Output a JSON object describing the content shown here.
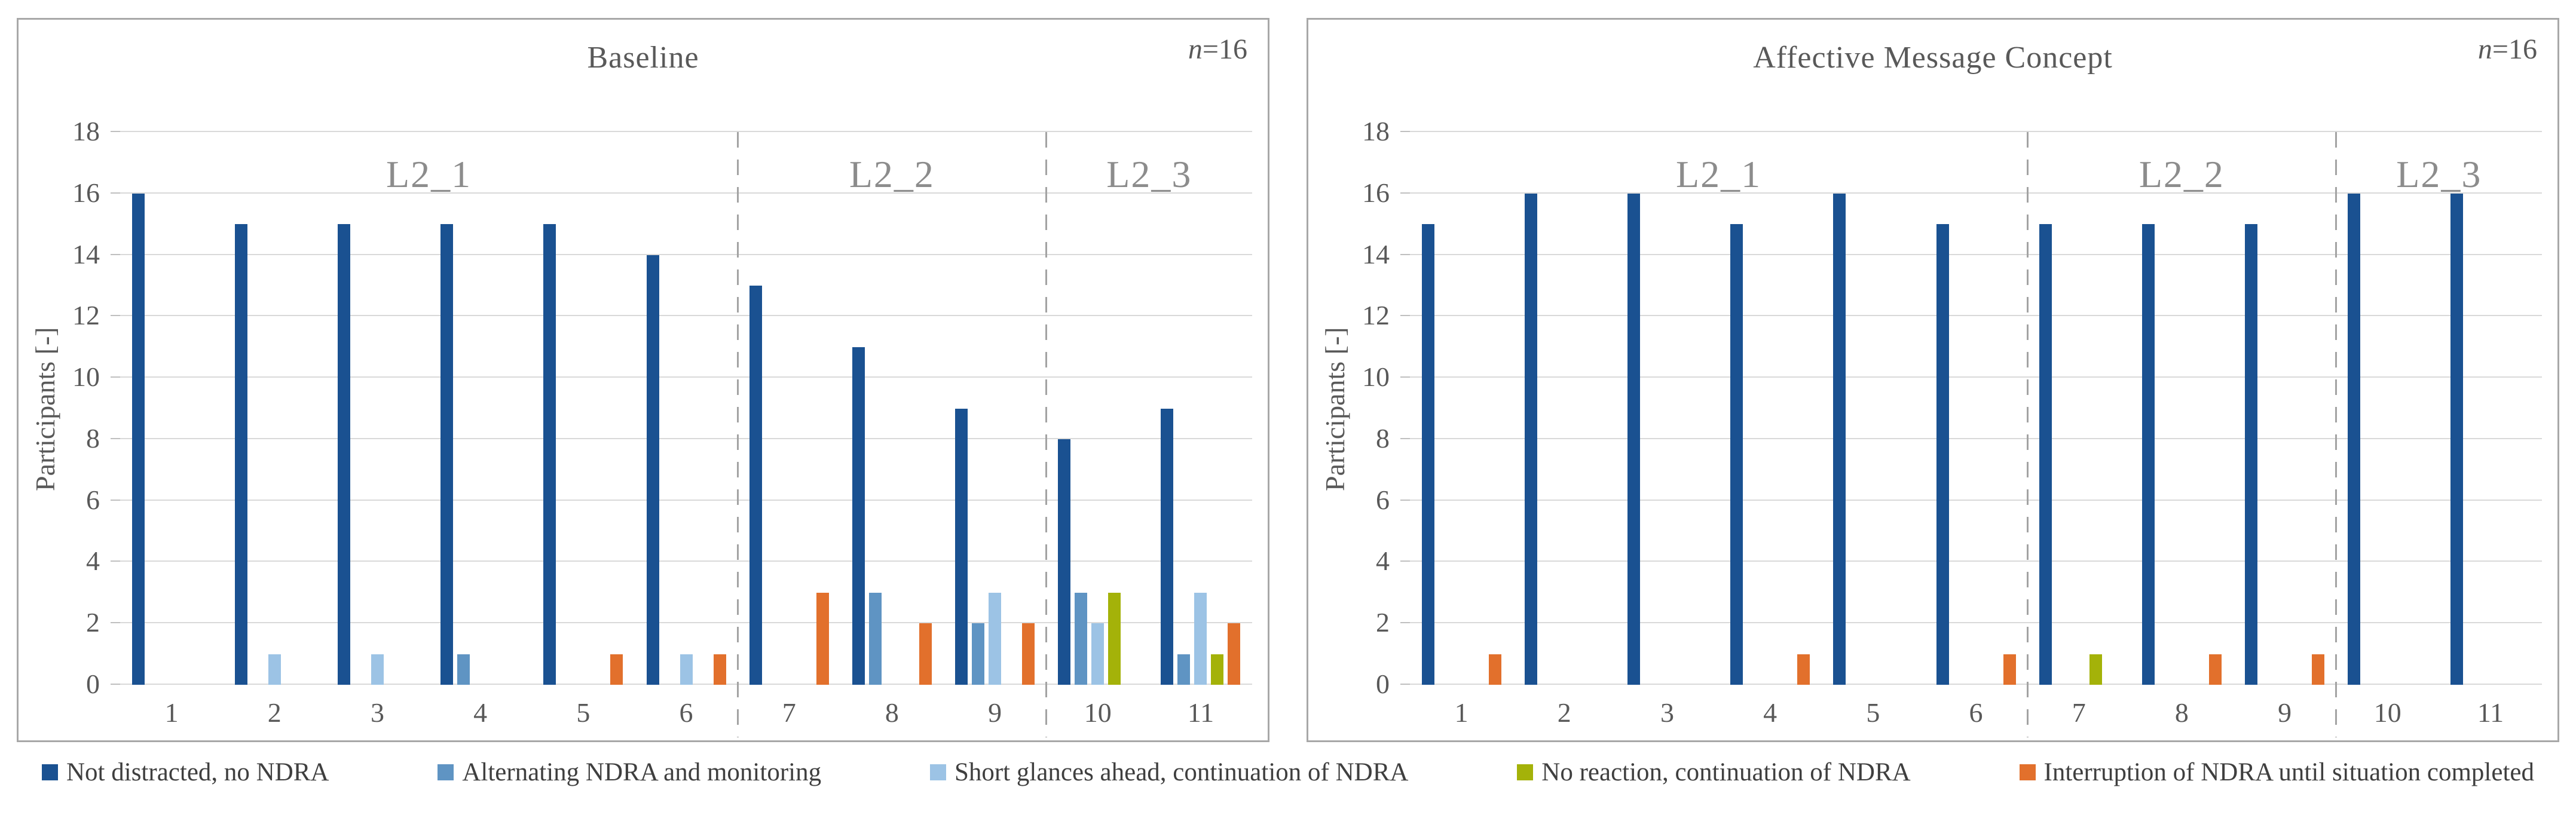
{
  "figure": {
    "y_axis_title": "Participants [-]",
    "n_italic": "n",
    "n_rest": "=16"
  },
  "legend": {
    "items": [
      {
        "label": "Not distracted, no NDRA",
        "color": "#1A5191"
      },
      {
        "label": "Alternating NDRA and monitoring",
        "color": "#5F94C3"
      },
      {
        "label": "Short glances ahead, continuation of NDRA",
        "color": "#9CC3E5"
      },
      {
        "label": "No reaction, continuation of NDRA",
        "color": "#A4B209"
      },
      {
        "label": "Interruption of NDRA until situation completed",
        "color": "#E2702C"
      }
    ]
  },
  "chart_data": [
    {
      "type": "bar",
      "title": "Baseline",
      "annotation": "n=16",
      "ylabel": "Participants [-]",
      "xlabel": "",
      "ylim": [
        0,
        18
      ],
      "yticks": [
        0,
        2,
        4,
        6,
        8,
        10,
        12,
        14,
        16,
        18
      ],
      "grid": "horizontal",
      "categories": [
        "1",
        "2",
        "3",
        "4",
        "5",
        "6",
        "7",
        "8",
        "9",
        "10",
        "11"
      ],
      "sections": [
        {
          "label": "L2_1",
          "start": 1,
          "end": 6
        },
        {
          "label": "L2_2",
          "start": 7,
          "end": 9
        },
        {
          "label": "L2_3",
          "start": 10,
          "end": 11
        }
      ],
      "series": [
        {
          "name": "Not distracted, no NDRA",
          "color": "#1A5191",
          "values": [
            16,
            15,
            15,
            15,
            15,
            14,
            13,
            11,
            9,
            8,
            9
          ]
        },
        {
          "name": "Alternating NDRA and monitoring",
          "color": "#5F94C3",
          "values": [
            0,
            0,
            0,
            1,
            0,
            0,
            0,
            3,
            2,
            3,
            1
          ]
        },
        {
          "name": "Short glances ahead, continuation of NDRA",
          "color": "#9CC3E5",
          "values": [
            0,
            1,
            1,
            0,
            0,
            1,
            0,
            0,
            3,
            2,
            3
          ]
        },
        {
          "name": "No reaction, continuation of NDRA",
          "color": "#A4B209",
          "values": [
            0,
            0,
            0,
            0,
            0,
            0,
            0,
            0,
            0,
            3,
            1
          ]
        },
        {
          "name": "Interruption of NDRA until situation completed",
          "color": "#E2702C",
          "values": [
            0,
            0,
            0,
            0,
            1,
            1,
            3,
            2,
            2,
            0,
            2
          ]
        }
      ]
    },
    {
      "type": "bar",
      "title": "Affective Message Concept",
      "annotation": "n=16",
      "ylabel": "Participants [-]",
      "xlabel": "",
      "ylim": [
        0,
        18
      ],
      "yticks": [
        0,
        2,
        4,
        6,
        8,
        10,
        12,
        14,
        16,
        18
      ],
      "grid": "horizontal",
      "categories": [
        "1",
        "2",
        "3",
        "4",
        "5",
        "6",
        "7",
        "8",
        "9",
        "10",
        "11"
      ],
      "sections": [
        {
          "label": "L2_1",
          "start": 1,
          "end": 6
        },
        {
          "label": "L2_2",
          "start": 7,
          "end": 9
        },
        {
          "label": "L2_3",
          "start": 10,
          "end": 11
        }
      ],
      "series": [
        {
          "name": "Not distracted, no NDRA",
          "color": "#1A5191",
          "values": [
            15,
            16,
            16,
            15,
            16,
            15,
            15,
            15,
            15,
            16,
            16
          ]
        },
        {
          "name": "Alternating NDRA and monitoring",
          "color": "#5F94C3",
          "values": [
            0,
            0,
            0,
            0,
            0,
            0,
            0,
            0,
            0,
            0,
            0
          ]
        },
        {
          "name": "Short glances ahead, continuation of NDRA",
          "color": "#9CC3E5",
          "values": [
            0,
            0,
            0,
            0,
            0,
            0,
            0,
            0,
            0,
            0,
            0
          ]
        },
        {
          "name": "No reaction, continuation of NDRA",
          "color": "#A4B209",
          "values": [
            0,
            0,
            0,
            0,
            0,
            0,
            1,
            0,
            0,
            0,
            0
          ]
        },
        {
          "name": "Interruption of NDRA until situation completed",
          "color": "#E2702C",
          "values": [
            1,
            0,
            0,
            1,
            0,
            1,
            0,
            1,
            1,
            0,
            0
          ]
        }
      ]
    }
  ]
}
